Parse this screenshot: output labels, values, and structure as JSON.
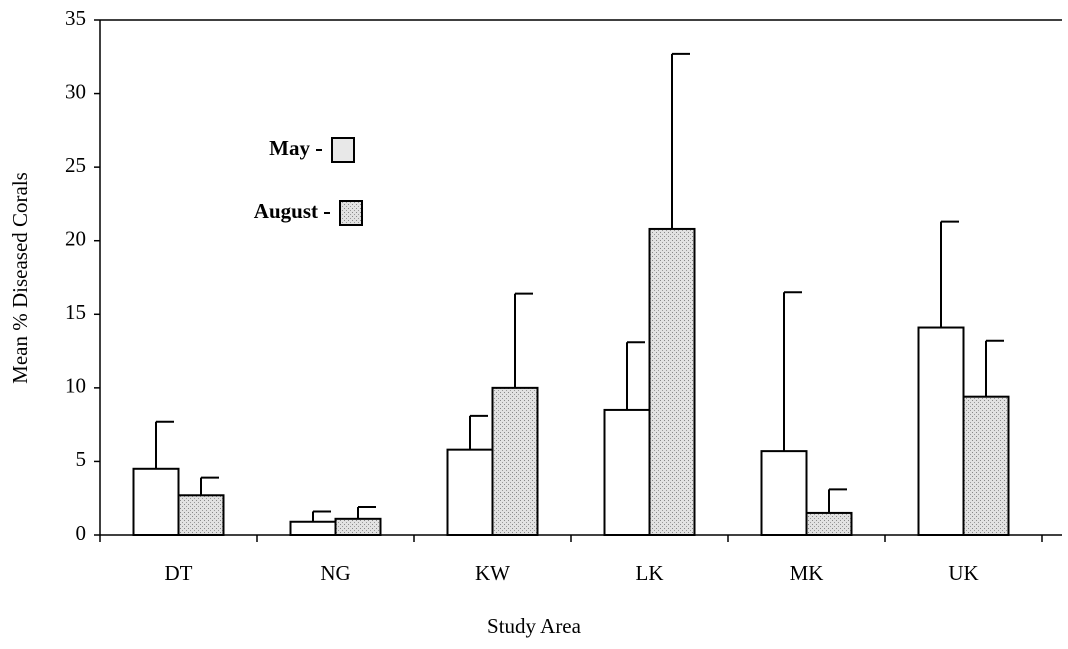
{
  "chart_data": {
    "type": "bar",
    "xlabel": "Study Area",
    "ylabel": "Mean % Diseased Corals",
    "categories": [
      "DT",
      "NG",
      "KW",
      "LK",
      "MK",
      "UK"
    ],
    "series": [
      {
        "name": "May",
        "color": "#ffffff",
        "values": [
          4.5,
          0.9,
          5.8,
          8.5,
          5.7,
          14.1
        ],
        "errors": [
          3.2,
          0.7,
          2.3,
          4.6,
          10.8,
          7.2
        ]
      },
      {
        "name": "August",
        "color": "#d3d3d3",
        "values": [
          2.7,
          1.1,
          10.0,
          20.8,
          1.5,
          9.4
        ],
        "errors": [
          1.2,
          0.8,
          6.4,
          11.9,
          1.6,
          3.8
        ]
      }
    ],
    "ylim": [
      0,
      35
    ],
    "yticks": [
      0,
      5,
      10,
      15,
      20,
      25,
      30,
      35
    ]
  }
}
